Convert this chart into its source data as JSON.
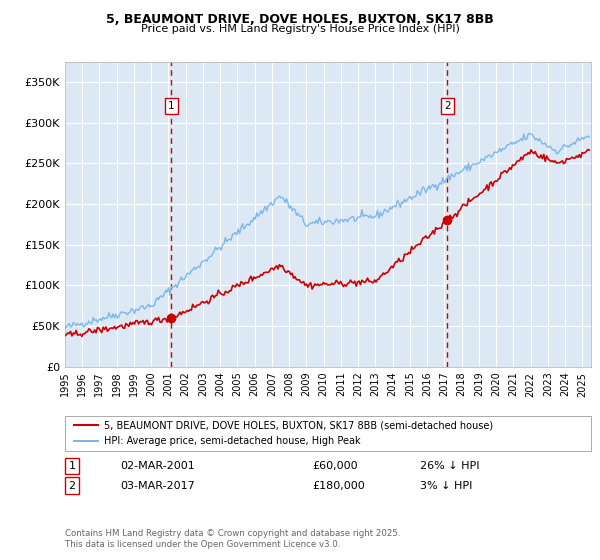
{
  "title1": "5, BEAUMONT DRIVE, DOVE HOLES, BUXTON, SK17 8BB",
  "title2": "Price paid vs. HM Land Registry's House Price Index (HPI)",
  "ylabel_ticks": [
    "£0",
    "£50K",
    "£100K",
    "£150K",
    "£200K",
    "£250K",
    "£300K",
    "£350K"
  ],
  "ytick_vals": [
    0,
    50000,
    100000,
    150000,
    200000,
    250000,
    300000,
    350000
  ],
  "ylim": [
    0,
    375000
  ],
  "xlim_start": 1995.0,
  "xlim_end": 2025.5,
  "sale1_date": 2001.17,
  "sale1_price": 60000,
  "sale2_date": 2017.17,
  "sale2_price": 180000,
  "hpi_color": "#7eb6e8",
  "property_color": "#cc0000",
  "vline_color": "#cc0000",
  "bg_color": "#dce9f5",
  "grid_color": "#ffffff",
  "legend_line1": "5, BEAUMONT DRIVE, DOVE HOLES, BUXTON, SK17 8BB (semi-detached house)",
  "legend_line2": "HPI: Average price, semi-detached house, High Peak",
  "footer": "Contains HM Land Registry data © Crown copyright and database right 2025.\nThis data is licensed under the Open Government Licence v3.0.",
  "xtick_years": [
    1995,
    1996,
    1997,
    1998,
    1999,
    2000,
    2001,
    2002,
    2003,
    2004,
    2005,
    2006,
    2007,
    2008,
    2009,
    2010,
    2011,
    2012,
    2013,
    2014,
    2015,
    2016,
    2017,
    2018,
    2019,
    2020,
    2021,
    2022,
    2023,
    2024,
    2025
  ]
}
